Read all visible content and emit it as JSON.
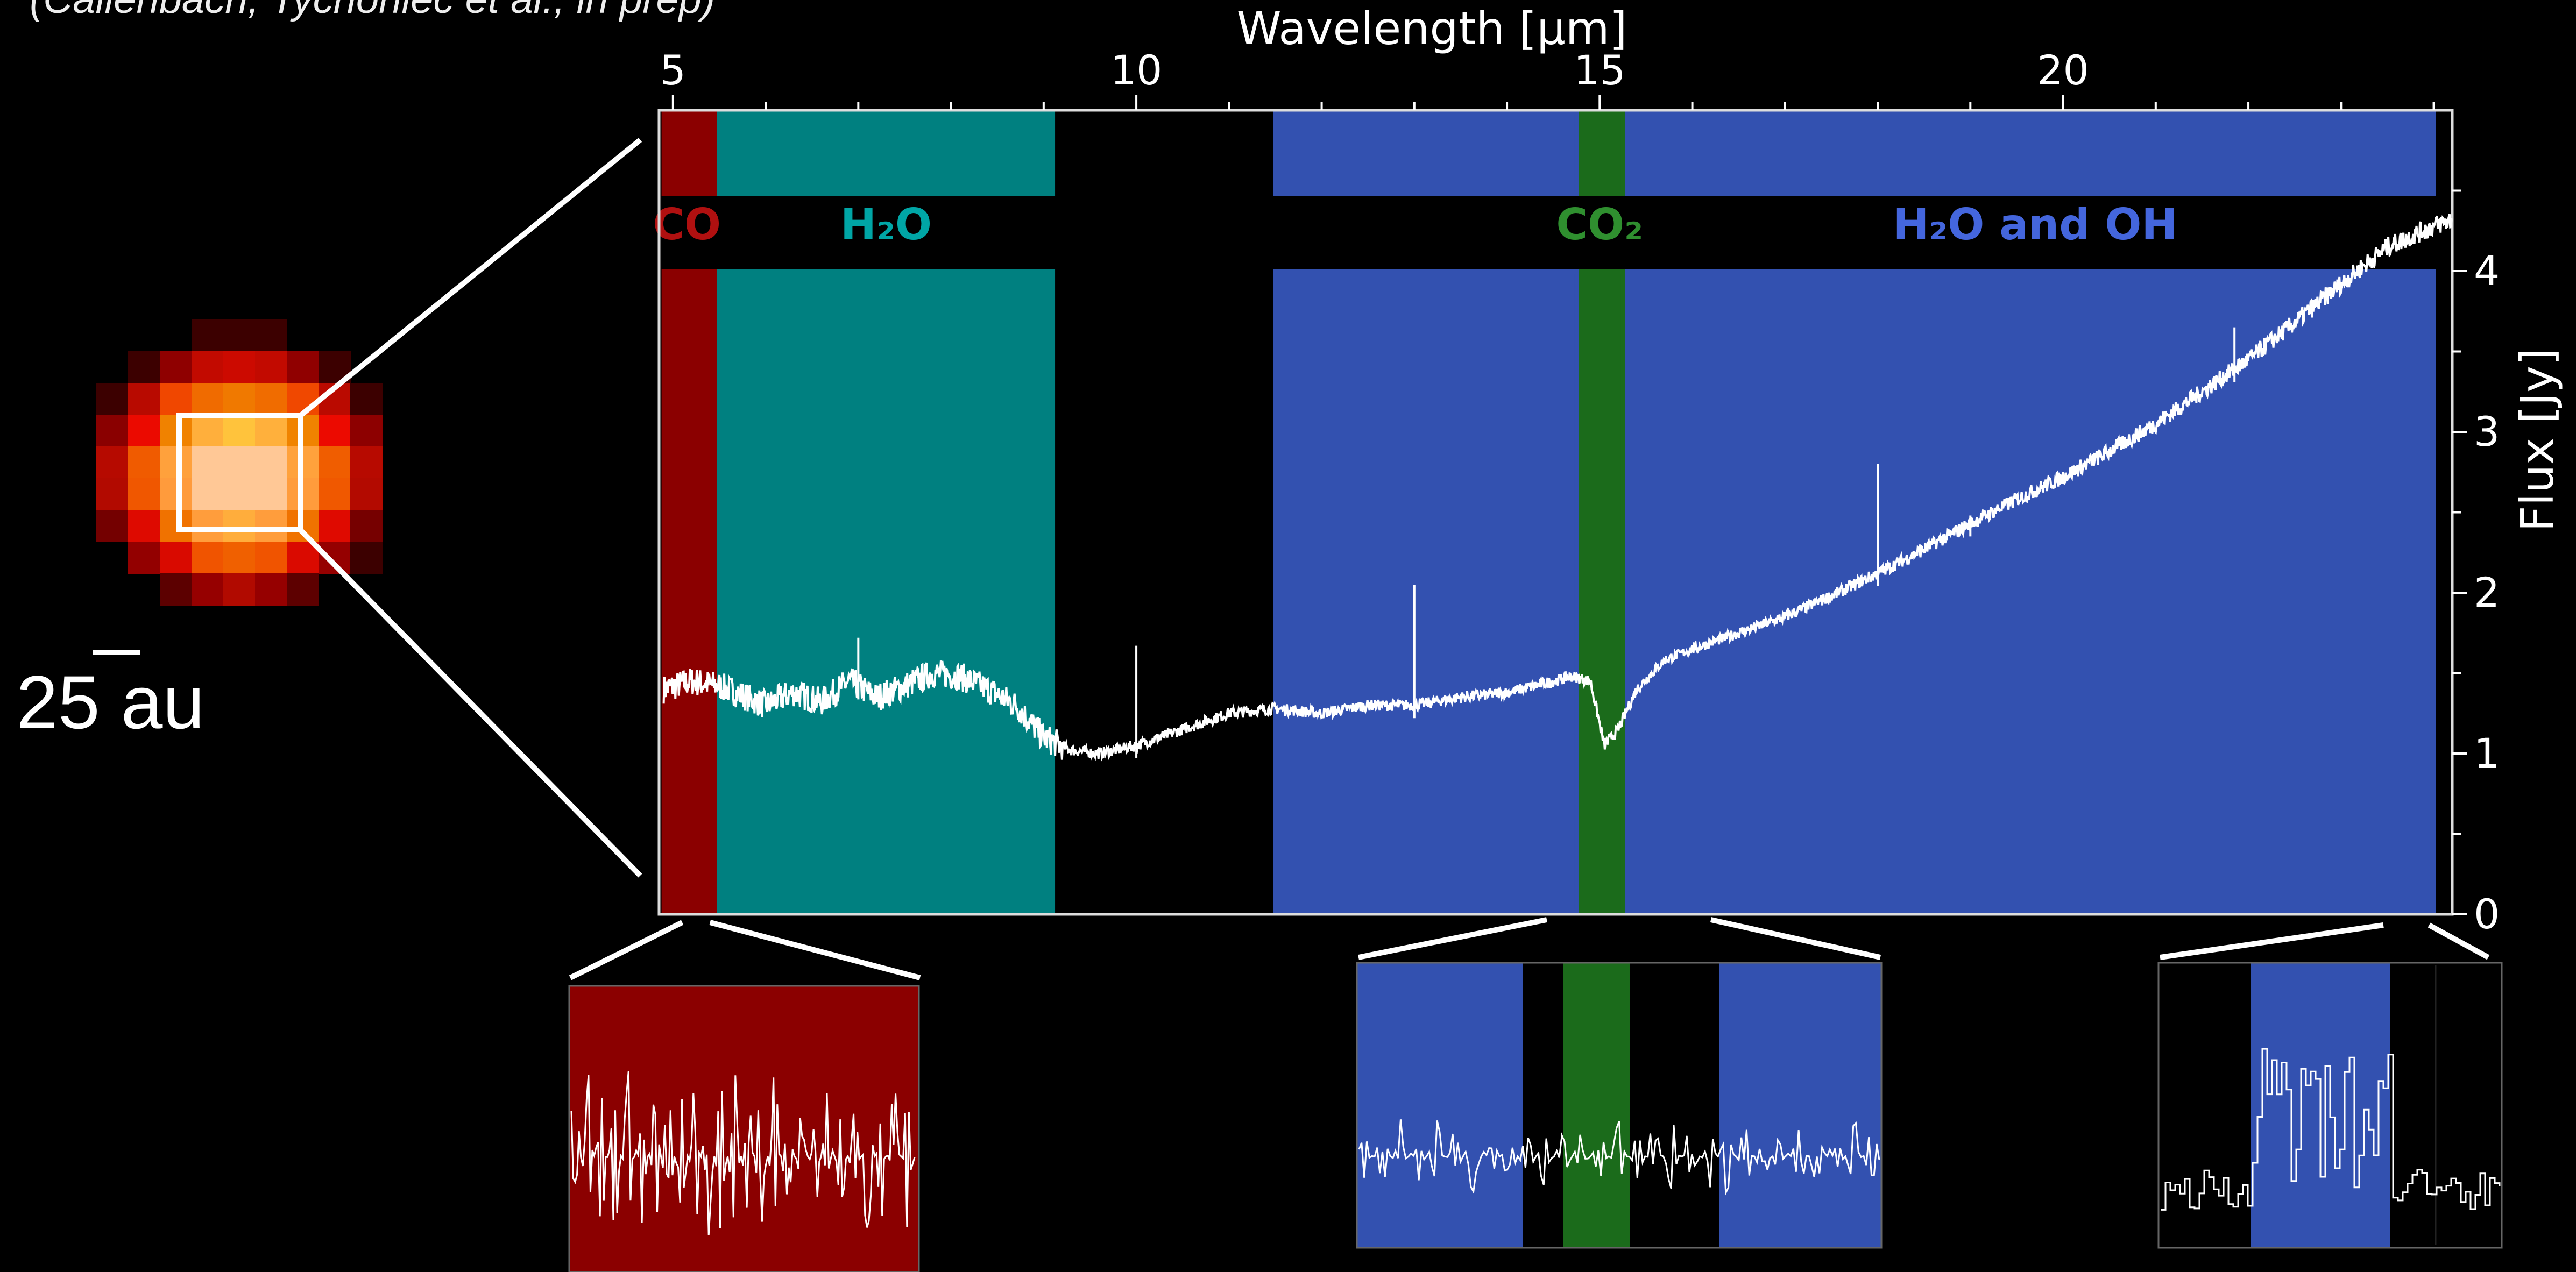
{
  "citation": "(Callenbach, Tychoniec et al., in prep)",
  "scale_bar_label": "25 au",
  "colors": {
    "co": "#8b0000",
    "h2o": "#008080",
    "co2": "#1b6b1b",
    "h2o_oh": "#3351b0",
    "co_label": "#b01010",
    "h2o_label": "#00a6a6",
    "co2_label": "#2f8f2f",
    "h2o_oh_label": "#4466dd"
  },
  "chart_data": {
    "type": "line",
    "xlabel": "Wavelength [μm]",
    "ylabel": "Flux [Jy]",
    "xlim": [
      4.85,
      24.2
    ],
    "ylim": [
      0,
      5.0
    ],
    "xticks": [
      5,
      10,
      15,
      20
    ],
    "yticks": [
      0,
      1,
      2,
      3,
      4
    ],
    "bands": [
      {
        "label": "CO",
        "x0": 4.9,
        "x1": 5.45,
        "color_key": "co"
      },
      {
        "label": "H₂O",
        "x0": 5.5,
        "x1": 9.1,
        "color_key": "h2o"
      },
      {
        "label": "",
        "x0": 11.5,
        "x1": 14.75,
        "color_key": "h2o_oh"
      },
      {
        "label": "CO₂",
        "x0": 14.8,
        "x1": 15.25,
        "color_key": "co2"
      },
      {
        "label": "H₂O and OH",
        "x0": 15.3,
        "x1": 24.0,
        "color_key": "h2o_oh"
      }
    ],
    "band_label_positions": {
      "CO": 5.15,
      "H₂O": 7.3,
      "CO₂": 15.0,
      "H₂O and OH": 19.7
    },
    "series": [
      {
        "x": [
          4.9,
          5.2,
          5.5,
          5.8,
          6.0,
          6.3,
          6.6,
          6.9,
          7.2,
          7.5,
          7.8,
          8.1,
          8.4,
          8.7,
          9.0,
          9.3,
          9.6,
          10.0,
          10.5,
          11.0,
          11.5,
          12.0,
          12.5,
          13.0,
          13.5,
          14.0,
          14.5,
          14.7,
          14.9,
          15.05,
          15.2,
          15.4,
          15.7,
          16.0,
          16.5,
          17.0,
          17.5,
          18.0,
          18.5,
          19.0,
          19.5,
          20.0,
          20.5,
          21.0,
          21.5,
          22.0,
          22.5,
          23.0,
          23.5,
          24.0,
          24.2
        ],
        "y": [
          1.4,
          1.45,
          1.42,
          1.35,
          1.3,
          1.38,
          1.32,
          1.45,
          1.35,
          1.42,
          1.5,
          1.48,
          1.4,
          1.3,
          1.1,
          1.02,
          1.0,
          1.05,
          1.15,
          1.25,
          1.28,
          1.25,
          1.3,
          1.3,
          1.35,
          1.38,
          1.45,
          1.48,
          1.45,
          1.05,
          1.15,
          1.4,
          1.58,
          1.65,
          1.75,
          1.85,
          1.98,
          2.12,
          2.27,
          2.43,
          2.58,
          2.72,
          2.88,
          3.05,
          3.25,
          3.45,
          3.68,
          3.92,
          4.15,
          4.28,
          4.32
        ]
      }
    ],
    "spikes": [
      {
        "x": 7.0,
        "y": 1.72
      },
      {
        "x": 10.0,
        "y": 1.67
      },
      {
        "x": 13.0,
        "y": 2.05
      },
      {
        "x": 18.0,
        "y": 2.8
      },
      {
        "x": 19.0,
        "y": 2.48
      },
      {
        "x": 21.85,
        "y": 3.65
      }
    ]
  }
}
